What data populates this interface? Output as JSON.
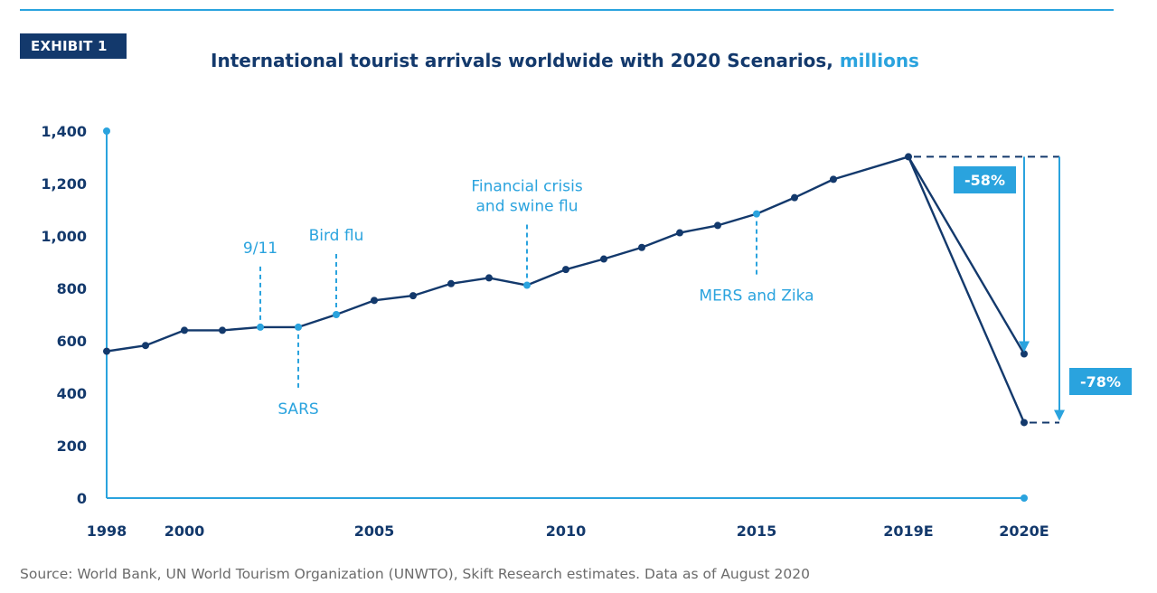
{
  "exhibit": {
    "label": "EXHIBIT 1"
  },
  "title": {
    "main": "International tourist arrivals worldwide with 2020 Scenarios,",
    "unit": "millions"
  },
  "source": "Source: World Bank, UN World Tourism Organization (UNWTO), Skift Research estimates. Data as of August 2020",
  "colors": {
    "navy": "#13396c",
    "blue": "#2aa3de",
    "rule": "#2aa3de"
  },
  "chart_data": {
    "type": "line",
    "title": "International tourist arrivals worldwide with 2020 Scenarios, millions",
    "xlabel": "",
    "ylabel": "millions",
    "ylim": [
      0,
      1400
    ],
    "yticks": [
      0,
      200,
      400,
      600,
      800,
      1000,
      1200,
      1400
    ],
    "ytick_labels": [
      "0",
      "200",
      "400",
      "600",
      "800",
      "1,000",
      "1,200",
      "1,400"
    ],
    "x_tick_labels": [
      {
        "year": 1998,
        "label": "1998"
      },
      {
        "year": 2000,
        "label": "2000"
      },
      {
        "year": 2005,
        "label": "2005"
      },
      {
        "year": 2010,
        "label": "2010"
      },
      {
        "year": 2015,
        "label": "2015"
      },
      {
        "year": 2019,
        "label": "2019E"
      },
      {
        "year": 2020,
        "label": "2020E"
      }
    ],
    "series": [
      {
        "name": "International tourist arrivals",
        "points": [
          {
            "x": 1998,
            "y": 560
          },
          {
            "x": 1999,
            "y": 582
          },
          {
            "x": 2000,
            "y": 640
          },
          {
            "x": 2001,
            "y": 640
          },
          {
            "x": 2002,
            "y": 652
          },
          {
            "x": 2003,
            "y": 652
          },
          {
            "x": 2004,
            "y": 700
          },
          {
            "x": 2005,
            "y": 754
          },
          {
            "x": 2006,
            "y": 772
          },
          {
            "x": 2007,
            "y": 818
          },
          {
            "x": 2008,
            "y": 840
          },
          {
            "x": 2009,
            "y": 812
          },
          {
            "x": 2010,
            "y": 872
          },
          {
            "x": 2011,
            "y": 912
          },
          {
            "x": 2012,
            "y": 956
          },
          {
            "x": 2013,
            "y": 1012
          },
          {
            "x": 2014,
            "y": 1040
          },
          {
            "x": 2015,
            "y": 1084
          },
          {
            "x": 2016,
            "y": 1146
          },
          {
            "x": 2017,
            "y": 1216
          },
          {
            "x": 2019,
            "y": 1302
          }
        ]
      },
      {
        "name": "2020 Scenario -58%",
        "points": [
          {
            "x": 2019,
            "y": 1302
          },
          {
            "x": 2020,
            "y": 550
          }
        ]
      },
      {
        "name": "2020 Scenario -78%",
        "points": [
          {
            "x": 2019,
            "y": 1302
          },
          {
            "x": 2020,
            "y": 288
          }
        ]
      }
    ],
    "annotations": [
      {
        "text": [
          "9/11"
        ],
        "x": 2002,
        "y": 652,
        "position": "above"
      },
      {
        "text": [
          "SARS"
        ],
        "x": 2003,
        "y": 652,
        "position": "below"
      },
      {
        "text": [
          "Bird flu"
        ],
        "x": 2004,
        "y": 700,
        "position": "above"
      },
      {
        "text": [
          "Financial crisis",
          "and swine flu"
        ],
        "x": 2009,
        "y": 812,
        "position": "above"
      },
      {
        "text": [
          "MERS and Zika"
        ],
        "x": 2015,
        "y": 1084,
        "position": "below"
      }
    ],
    "callouts": [
      {
        "label": "-58%",
        "from": 1302,
        "to": 550
      },
      {
        "label": "-78%",
        "from": 1302,
        "to": 288
      }
    ]
  }
}
